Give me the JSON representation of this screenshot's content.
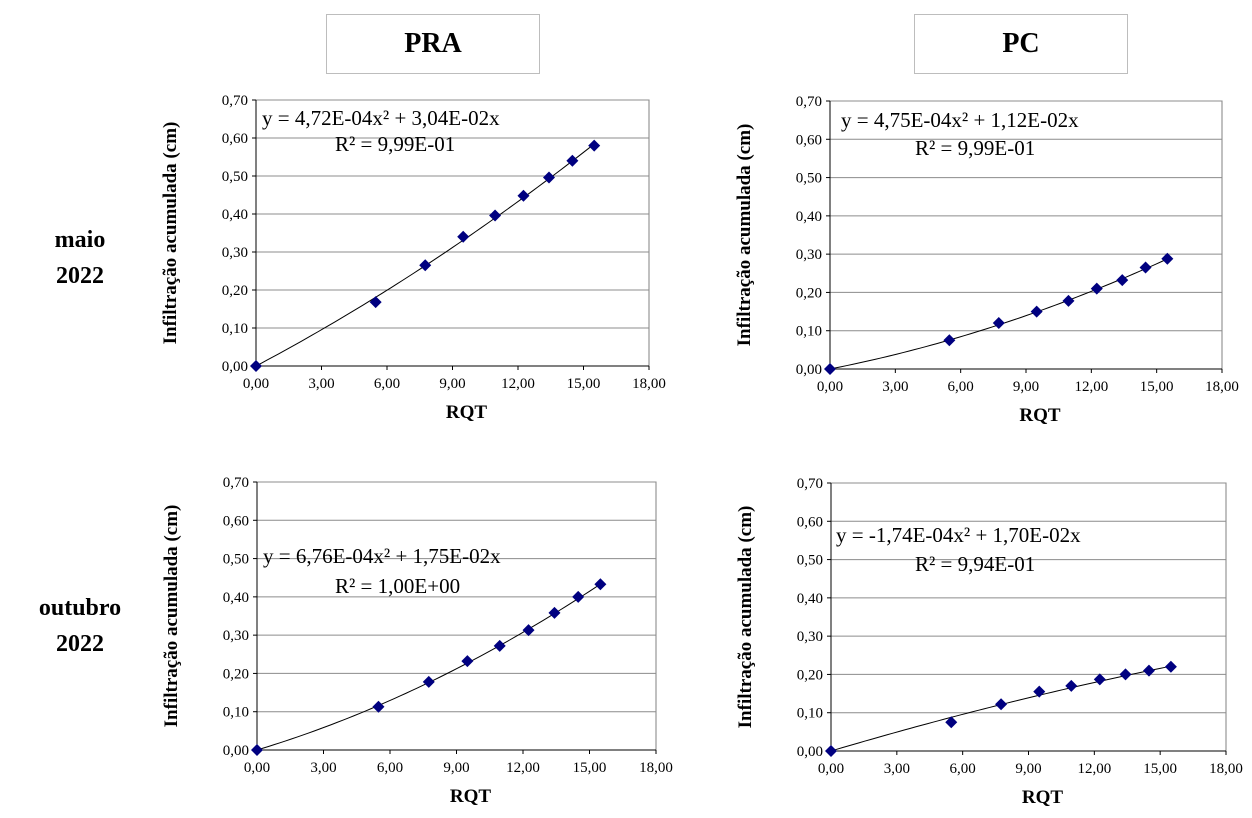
{
  "columns": [
    "PRA",
    "PC"
  ],
  "rows": [
    {
      "line1": "maio",
      "line2": "2022"
    },
    {
      "line1": "outubro",
      "line2": "2022"
    }
  ],
  "chart_data": [
    {
      "type": "scatter",
      "column": "PRA",
      "row": "maio 2022",
      "xlabel": "RQT",
      "ylabel": "Infiltração acumulada (cm)",
      "xlim": [
        0,
        18
      ],
      "ylim": [
        0,
        0.7
      ],
      "xticks": [
        "0,00",
        "3,00",
        "6,00",
        "9,00",
        "12,00",
        "15,00",
        "18,00"
      ],
      "yticks": [
        "0,00",
        "0,10",
        "0,20",
        "0,30",
        "0,40",
        "0,50",
        "0,60",
        "0,70"
      ],
      "grid": "horizontal",
      "marker_color": "#000080",
      "x": [
        0,
        5.48,
        7.75,
        9.49,
        10.95,
        12.25,
        13.42,
        14.49,
        15.49
      ],
      "y": [
        0,
        0.168,
        0.265,
        0.34,
        0.396,
        0.448,
        0.496,
        0.54,
        0.58
      ],
      "trendline": {
        "type": "poly2",
        "a": 0.000472,
        "b": 0.0304
      },
      "equation": "y = 4,72E-04x² + 3,04E-02x",
      "r2": "R² = 9,99E-01"
    },
    {
      "type": "scatter",
      "column": "PC",
      "row": "maio 2022",
      "xlabel": "RQT",
      "ylabel": "Infiltração acumulada (cm)",
      "xlim": [
        0,
        18
      ],
      "ylim": [
        0,
        0.7
      ],
      "xticks": [
        "0,00",
        "3,00",
        "6,00",
        "9,00",
        "12,00",
        "15,00",
        "18,00"
      ],
      "yticks": [
        "0,00",
        "0,10",
        "0,20",
        "0,30",
        "0,40",
        "0,50",
        "0,60",
        "0,70"
      ],
      "grid": "horizontal",
      "marker_color": "#000080",
      "x": [
        0,
        5.48,
        7.75,
        9.49,
        10.95,
        12.25,
        13.42,
        14.49,
        15.49
      ],
      "y": [
        0,
        0.075,
        0.12,
        0.15,
        0.178,
        0.21,
        0.232,
        0.265,
        0.288
      ],
      "trendline": {
        "type": "poly2",
        "a": 0.000475,
        "b": 0.0112
      },
      "equation": "y = 4,75E-04x² + 1,12E-02x",
      "r2": "R² = 9,99E-01"
    },
    {
      "type": "scatter",
      "column": "PRA",
      "row": "outubro 2022",
      "xlabel": "RQT",
      "ylabel": "Infiltração acumulada (cm)",
      "xlim": [
        0,
        18
      ],
      "ylim": [
        0,
        0.7
      ],
      "xticks": [
        "0,00",
        "3,00",
        "6,00",
        "9,00",
        "12,00",
        "15,00",
        "18,00"
      ],
      "yticks": [
        "0,00",
        "0,10",
        "0,20",
        "0,30",
        "0,40",
        "0,50",
        "0,60",
        "0,70"
      ],
      "grid": "horizontal",
      "marker_color": "#000080",
      "x": [
        0,
        5.48,
        7.75,
        9.49,
        10.95,
        12.25,
        13.42,
        14.49,
        15.49
      ],
      "y": [
        0,
        0.113,
        0.178,
        0.232,
        0.272,
        0.313,
        0.358,
        0.4,
        0.433
      ],
      "trendline": {
        "type": "poly2",
        "a": 0.000676,
        "b": 0.0175
      },
      "equation": "y = 6,76E-04x² + 1,75E-02x",
      "r2": "R² = 1,00E+00"
    },
    {
      "type": "scatter",
      "column": "PC",
      "row": "outubro 2022",
      "xlabel": "RQT",
      "ylabel": "Infiltração acumulada (cm)",
      "xlim": [
        0,
        18
      ],
      "ylim": [
        0,
        0.7
      ],
      "xticks": [
        "0,00",
        "3,00",
        "6,00",
        "9,00",
        "12,00",
        "15,00",
        "18,00"
      ],
      "yticks": [
        "0,00",
        "0,10",
        "0,20",
        "0,30",
        "0,40",
        "0,50",
        "0,60",
        "0,70"
      ],
      "grid": "horizontal",
      "marker_color": "#000080",
      "x": [
        0,
        5.48,
        7.75,
        9.49,
        10.95,
        12.25,
        13.42,
        14.49,
        15.49
      ],
      "y": [
        0,
        0.075,
        0.122,
        0.155,
        0.17,
        0.187,
        0.2,
        0.21,
        0.22
      ],
      "trendline": {
        "type": "poly2",
        "a": -0.000174,
        "b": 0.017
      },
      "equation": "y = -1,74E-04x² + 1,70E-02x",
      "r2": "R² = 9,94E-01"
    }
  ]
}
